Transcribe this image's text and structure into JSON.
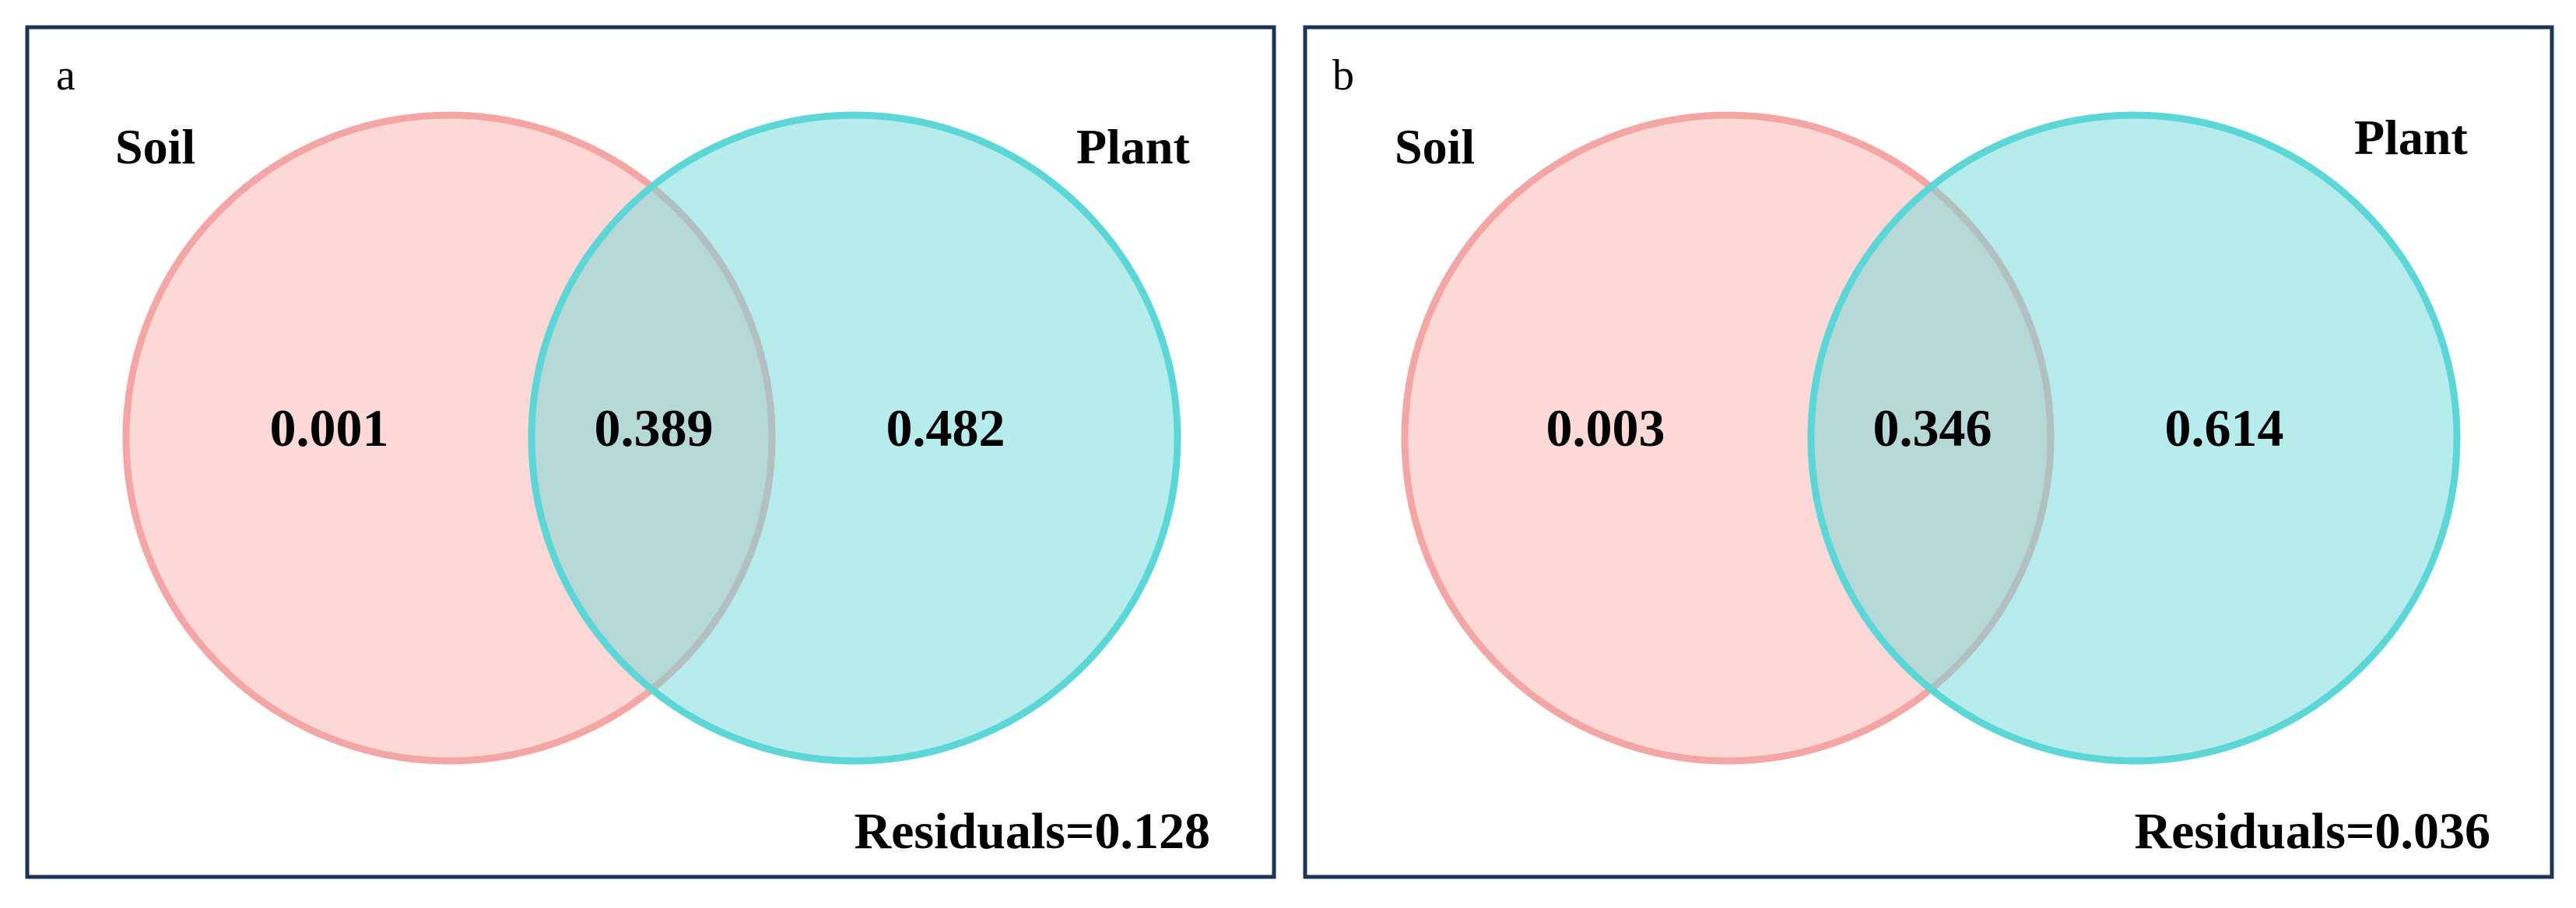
{
  "colors": {
    "frame": "#1c3557",
    "soil_fill": "#f8a8a6",
    "soil_stroke": "#f4a6a4",
    "plant_fill": "#6fdada",
    "plant_stroke": "#5cd6d6",
    "text": "#000000"
  },
  "panels": [
    {
      "letter": "a",
      "soil_label": "Soil",
      "plant_label": "Plant",
      "soil_only": "0.001",
      "shared": "0.389",
      "plant_only": "0.482",
      "residuals": "Residuals=0.128"
    },
    {
      "letter": "b",
      "soil_label": "Soil",
      "plant_label": "Plant",
      "soil_only": "0.003",
      "shared": "0.346",
      "plant_only": "0.614",
      "residuals": "Residuals=0.036"
    }
  ]
}
